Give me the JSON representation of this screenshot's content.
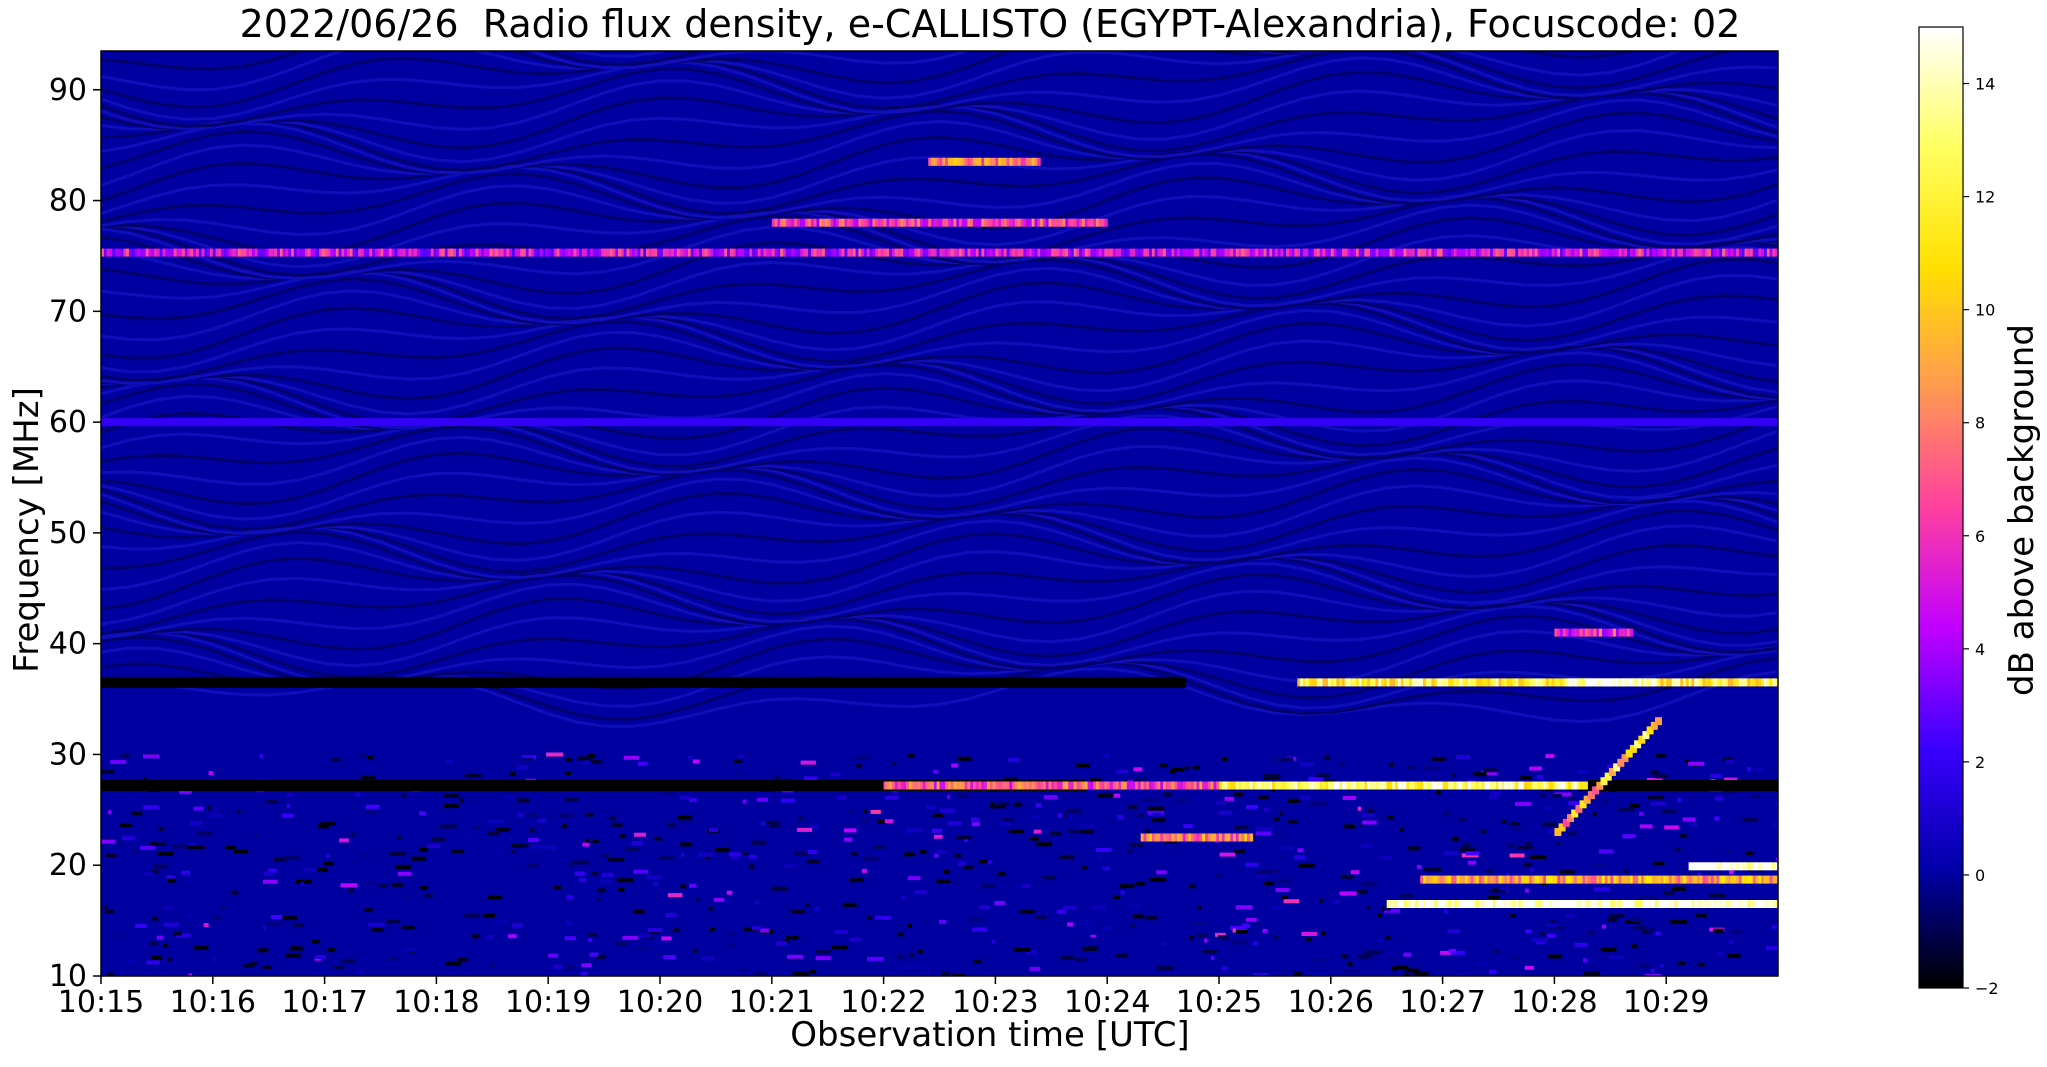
{
  "chart_data": {
    "type": "heatmap",
    "title": "2022/06/26  Radio flux density, e-CALLISTO (EGYPT-Alexandria), Focuscode: 02",
    "xlabel": "Observation time [UTC]",
    "ylabel": "Frequency [MHz]",
    "colorbar_label": "dB above background",
    "x_ticks": [
      "10:15",
      "10:16",
      "10:17",
      "10:18",
      "10:19",
      "10:20",
      "10:21",
      "10:22",
      "10:23",
      "10:24",
      "10:25",
      "10:26",
      "10:27",
      "10:28",
      "10:29"
    ],
    "x_range_minutes": [
      0,
      15
    ],
    "y_ticks": [
      10,
      20,
      30,
      40,
      50,
      60,
      70,
      80,
      90
    ],
    "ylim": [
      10,
      93.5
    ],
    "colorbar_ticks": [
      -2,
      0,
      2,
      4,
      6,
      8,
      10,
      12,
      14
    ],
    "clim": [
      -2,
      15
    ],
    "colormap": [
      "#000000",
      "#0000aa",
      "#3a00ff",
      "#c000ff",
      "#ff40a0",
      "#ff9a50",
      "#ffe000",
      "#ffff60",
      "#ffffff"
    ],
    "background_level_db": 0,
    "bands": [
      {
        "freq_mhz": 36.5,
        "t_start_min": 0,
        "t_end_min": 9.7,
        "db": -2
      },
      {
        "freq_mhz": 36.5,
        "t_start_min": 10.7,
        "t_end_min": 15,
        "db": 12
      },
      {
        "freq_mhz": 36.5,
        "t_start_min": 13.1,
        "t_end_min": 13.9,
        "db": 15
      },
      {
        "freq_mhz": 27.2,
        "t_start_min": 0,
        "t_end_min": 8.8,
        "db": -2
      },
      {
        "freq_mhz": 27.2,
        "t_start_min": 7.0,
        "t_end_min": 10.5,
        "db": 7
      },
      {
        "freq_mhz": 27.2,
        "t_start_min": 10.0,
        "t_end_min": 13.3,
        "db": 13
      },
      {
        "freq_mhz": 27.2,
        "t_start_min": 13.3,
        "t_end_min": 15,
        "db": -2
      },
      {
        "freq_mhz": 16.5,
        "t_start_min": 11.5,
        "t_end_min": 15,
        "db": 15
      },
      {
        "freq_mhz": 18.7,
        "t_start_min": 11.8,
        "t_end_min": 15,
        "db": 9
      },
      {
        "freq_mhz": 19.9,
        "t_start_min": 14.2,
        "t_end_min": 15,
        "db": 15
      },
      {
        "freq_mhz": 83.5,
        "t_start_min": 7.4,
        "t_end_min": 8.4,
        "db": 8
      },
      {
        "freq_mhz": 78.0,
        "t_start_min": 6.0,
        "t_end_min": 9.0,
        "db": 6
      },
      {
        "freq_mhz": 75.3,
        "t_start_min": 0,
        "t_end_min": 15,
        "db": 5
      },
      {
        "freq_mhz": 60.0,
        "t_start_min": 0,
        "t_end_min": 15,
        "db": 2
      },
      {
        "freq_mhz": 41.0,
        "t_start_min": 13.0,
        "t_end_min": 13.7,
        "db": 6
      },
      {
        "freq_mhz": 22.5,
        "t_start_min": 9.3,
        "t_end_min": 10.3,
        "db": 8
      }
    ],
    "drifting_burst": {
      "t_start_min": 13.0,
      "t_end_min": 13.9,
      "freq_start_mhz": 23,
      "freq_end_mhz": 33,
      "db": 10
    }
  }
}
